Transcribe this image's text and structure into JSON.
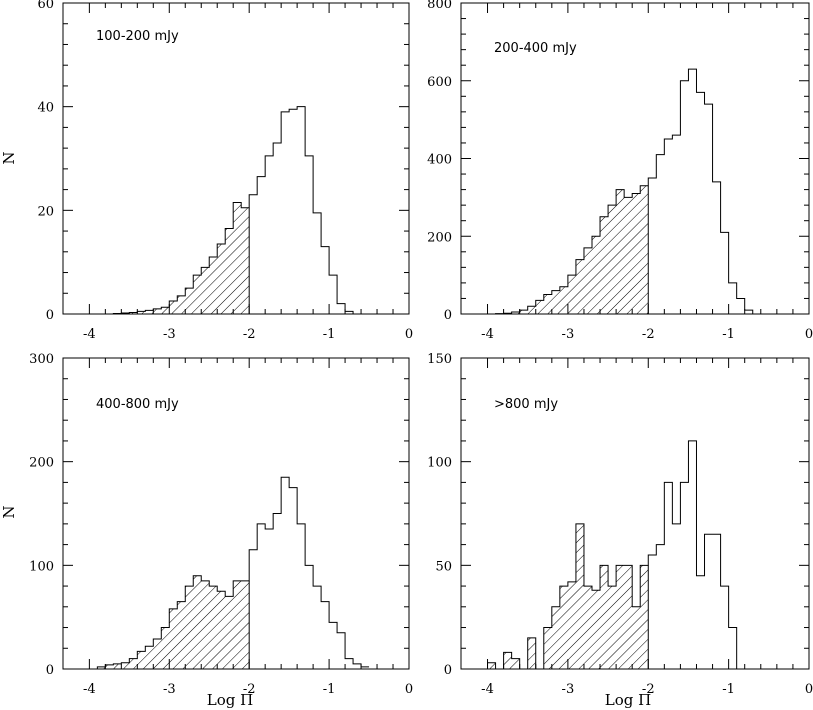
{
  "colors": {
    "ink": "#000000",
    "background": "#ffffff"
  },
  "chart_data": [
    {
      "type": "bar",
      "title": "100-200 mJy",
      "xlabel": "",
      "ylabel": "N",
      "xlim": [
        -4.33,
        0
      ],
      "ylim": [
        0,
        60
      ],
      "xticks": [
        "-4",
        "-3",
        "-2",
        "-1",
        "0"
      ],
      "yticks": [
        "0",
        "20",
        "40",
        "60"
      ],
      "bin_width": 0.1,
      "hatched_below": -2,
      "bin_starts": [
        -4.0,
        -3.9,
        -3.8,
        -3.7,
        -3.6,
        -3.5,
        -3.4,
        -3.3,
        -3.2,
        -3.1,
        -3.0,
        -2.9,
        -2.8,
        -2.7,
        -2.6,
        -2.5,
        -2.4,
        -2.3,
        -2.2,
        -2.1,
        -2.0,
        -1.9,
        -1.8,
        -1.7,
        -1.6,
        -1.5,
        -1.4,
        -1.3,
        -1.2,
        -1.1,
        -1.0,
        -0.9,
        -0.8,
        -0.7,
        -0.6
      ],
      "values": [
        0,
        0,
        0,
        0.1,
        0.2,
        0.3,
        0.5,
        0.7,
        1,
        1.3,
        2.5,
        3.5,
        5,
        7.5,
        9,
        11,
        13.5,
        16.5,
        21.5,
        20.5,
        23,
        26.5,
        30.5,
        33,
        39,
        39.5,
        40,
        30.5,
        19.5,
        13,
        7.5,
        2,
        0.5,
        0,
        0
      ]
    },
    {
      "type": "bar",
      "title": "200-400 mJy",
      "xlabel": "",
      "ylabel": "",
      "xlim": [
        -4.33,
        0
      ],
      "ylim": [
        0,
        800
      ],
      "xticks": [
        "-4",
        "-3",
        "-2",
        "-1",
        "0"
      ],
      "yticks": [
        "0",
        "200",
        "400",
        "600",
        "800"
      ],
      "bin_width": 0.1,
      "hatched_below": -2,
      "bin_starts": [
        -4.0,
        -3.9,
        -3.8,
        -3.7,
        -3.6,
        -3.5,
        -3.4,
        -3.3,
        -3.2,
        -3.1,
        -3.0,
        -2.9,
        -2.8,
        -2.7,
        -2.6,
        -2.5,
        -2.4,
        -2.3,
        -2.2,
        -2.1,
        -2.0,
        -1.9,
        -1.8,
        -1.7,
        -1.6,
        -1.5,
        -1.4,
        -1.3,
        -1.2,
        -1.1,
        -1.0,
        -0.9,
        -0.8,
        -0.7
      ],
      "values": [
        0,
        1,
        2,
        5,
        10,
        20,
        35,
        50,
        60,
        70,
        100,
        140,
        170,
        200,
        250,
        280,
        320,
        300,
        310,
        330,
        350,
        410,
        450,
        460,
        600,
        630,
        570,
        540,
        340,
        210,
        80,
        40,
        10,
        0
      ]
    },
    {
      "type": "bar",
      "title": "400-800 mJy",
      "xlabel": "Log Π",
      "ylabel": "N",
      "xlim": [
        -4.33,
        0
      ],
      "ylim": [
        0,
        300
      ],
      "xticks": [
        "-4",
        "-3",
        "-2",
        "-1",
        "0"
      ],
      "yticks": [
        "0",
        "100",
        "200",
        "300"
      ],
      "bin_width": 0.1,
      "hatched_below": -2,
      "bin_starts": [
        -4.0,
        -3.9,
        -3.8,
        -3.7,
        -3.6,
        -3.5,
        -3.4,
        -3.3,
        -3.2,
        -3.1,
        -3.0,
        -2.9,
        -2.8,
        -2.7,
        -2.6,
        -2.5,
        -2.4,
        -2.3,
        -2.2,
        -2.1,
        -2.0,
        -1.9,
        -1.8,
        -1.7,
        -1.6,
        -1.5,
        -1.4,
        -1.3,
        -1.2,
        -1.1,
        -1.0,
        -0.9,
        -0.8,
        -0.7,
        -0.6
      ],
      "values": [
        0,
        2,
        4,
        5,
        6,
        10,
        17,
        22,
        29,
        40,
        58,
        65,
        80,
        90,
        85,
        80,
        75,
        70,
        85,
        85,
        115,
        140,
        135,
        150,
        185,
        175,
        140,
        100,
        80,
        65,
        45,
        35,
        10,
        5,
        2
      ]
    },
    {
      "type": "bar",
      "title": ">800 mJy",
      "xlabel": "Log Π",
      "ylabel": "",
      "xlim": [
        -4.33,
        0
      ],
      "ylim": [
        0,
        150
      ],
      "xticks": [
        "-4",
        "-3",
        "-2",
        "-1",
        "0"
      ],
      "yticks": [
        "0",
        "50",
        "100",
        "150"
      ],
      "bin_width": 0.1,
      "hatched_below": -2,
      "bin_starts": [
        -4.0,
        -3.9,
        -3.8,
        -3.7,
        -3.6,
        -3.5,
        -3.4,
        -3.3,
        -3.2,
        -3.1,
        -3.0,
        -2.9,
        -2.8,
        -2.7,
        -2.6,
        -2.5,
        -2.4,
        -2.3,
        -2.2,
        -2.1,
        -2.0,
        -1.9,
        -1.8,
        -1.7,
        -1.6,
        -1.5,
        -1.4,
        -1.3,
        -1.2,
        -1.1,
        -1.0,
        -0.9
      ],
      "values": [
        3,
        0,
        8,
        5,
        0,
        15,
        0,
        20,
        30,
        40,
        42,
        70,
        40,
        38,
        50,
        40,
        50,
        50,
        30,
        50,
        55,
        60,
        90,
        70,
        90,
        110,
        45,
        65,
        65,
        40,
        20,
        0
      ]
    }
  ]
}
